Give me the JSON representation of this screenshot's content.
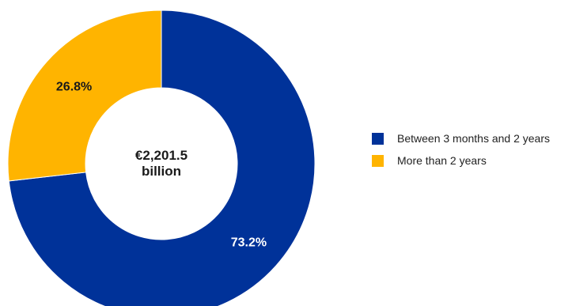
{
  "chart_data": {
    "type": "pie",
    "variant": "donut",
    "center_label": [
      "€2,201.5",
      "billion"
    ],
    "slices": [
      {
        "name": "Between 3 months and 2 years",
        "value": 73.2,
        "label": "73.2%",
        "color": "#003299",
        "label_color": "#ffffff"
      },
      {
        "name": "More than 2 years",
        "value": 26.8,
        "label": "26.8%",
        "color": "#FFB400",
        "label_color": "#1a1a1a"
      }
    ],
    "start": "12 o'clock, clockwise",
    "legend_placement": "right"
  }
}
